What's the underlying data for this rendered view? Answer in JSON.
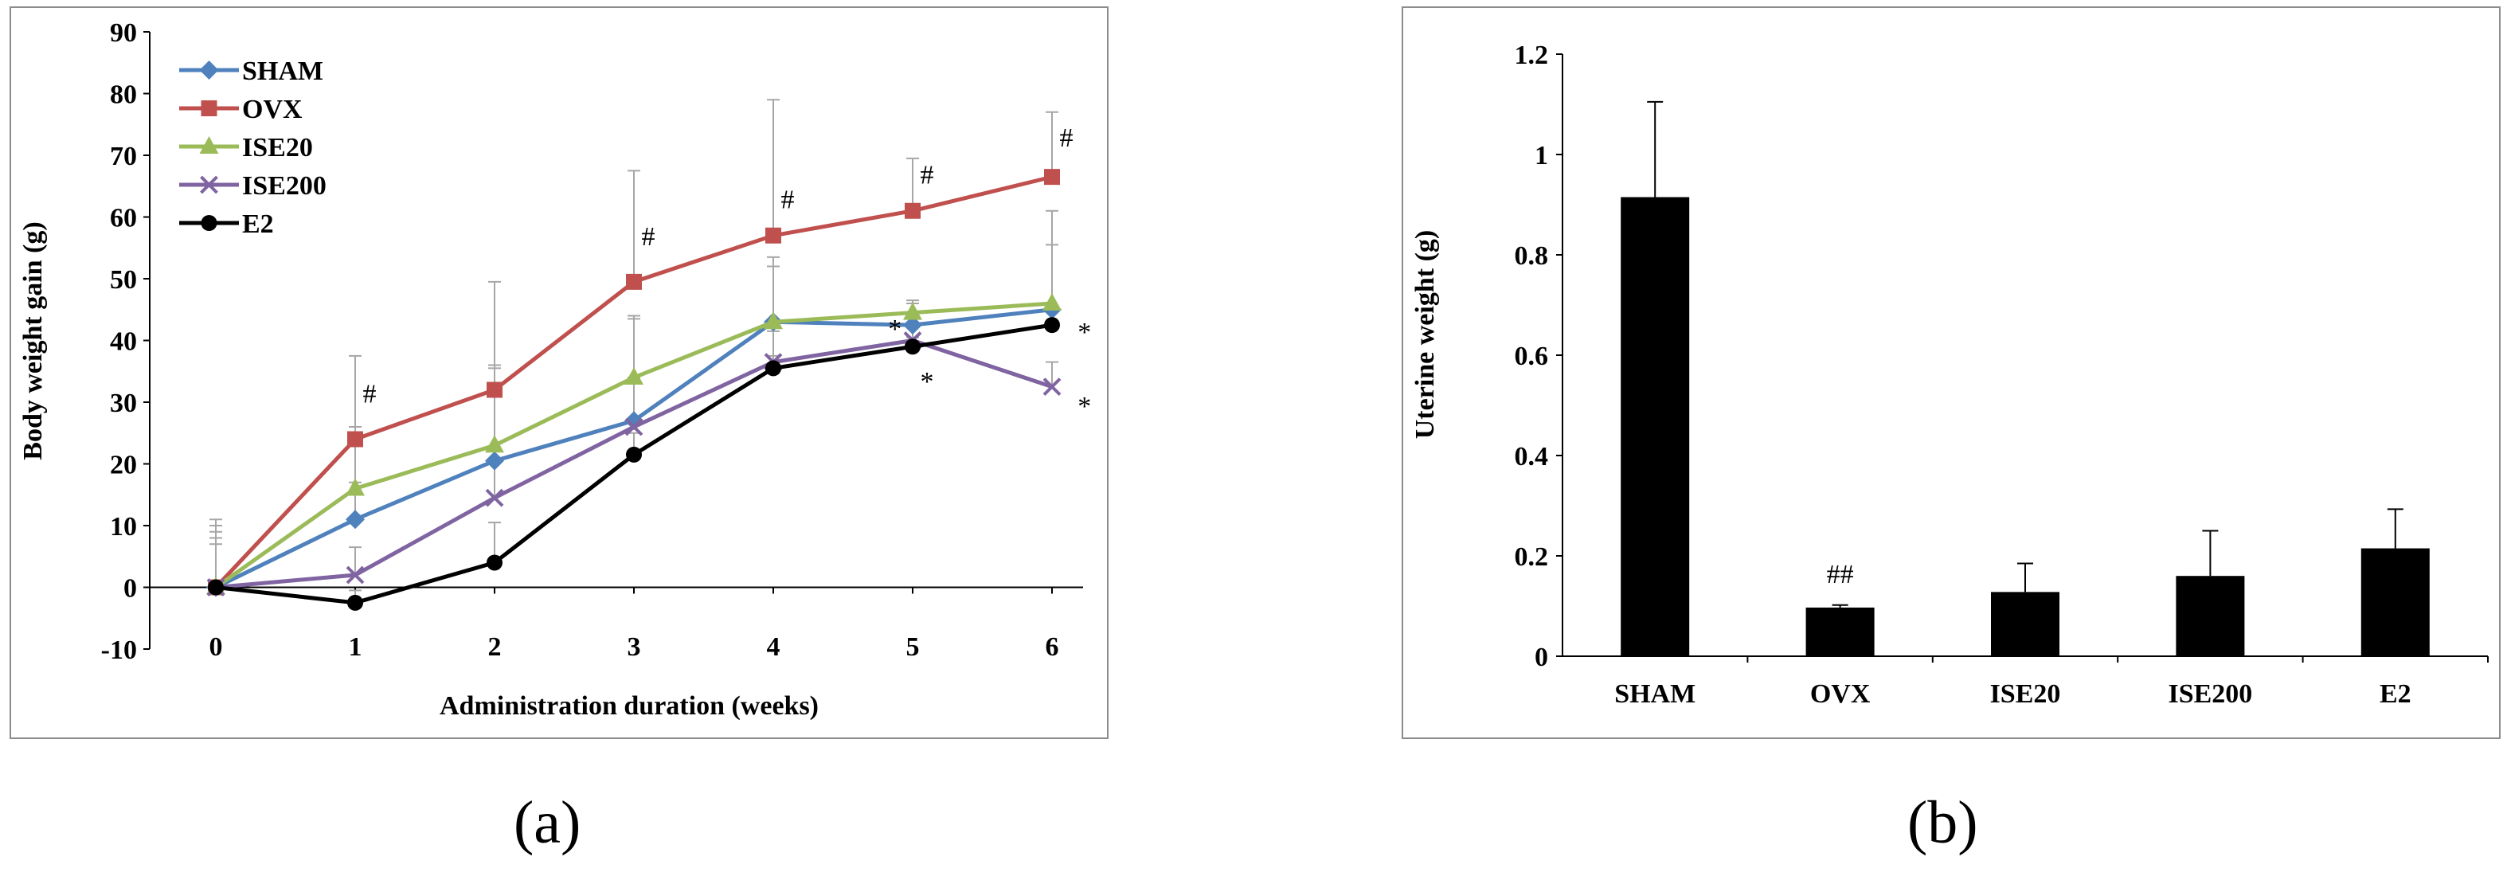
{
  "chart_data": [
    {
      "panel": "(a)",
      "type": "line",
      "title": "",
      "xlabel": "Administration duration (weeks)",
      "ylabel": "Body weight gain (g)",
      "x": [
        0,
        1,
        2,
        3,
        4,
        5,
        6
      ],
      "ylim": [
        -10,
        90
      ],
      "yticks": [
        -10,
        0,
        10,
        20,
        30,
        40,
        50,
        60,
        70,
        80,
        90
      ],
      "legend_position": "top-left",
      "series": [
        {
          "name": "SHAM",
          "color": "#4f81bd",
          "marker": "diamond",
          "values": [
            0,
            11,
            20.5,
            27,
            43,
            42.5,
            45
          ],
          "errors": [
            11,
            6,
            15,
            17,
            9,
            4,
            16
          ]
        },
        {
          "name": "OVX",
          "color": "#c0504d",
          "marker": "square",
          "values": [
            0,
            24,
            32,
            49.5,
            57,
            61,
            66.5
          ],
          "errors": [
            9,
            13.5,
            17.5,
            18,
            22,
            8.5,
            10.5
          ]
        },
        {
          "name": "ISE20",
          "color": "#9bbb59",
          "marker": "triangle",
          "values": [
            0,
            16,
            23,
            34,
            43,
            44.5,
            46
          ],
          "errors": [
            7,
            10,
            13,
            9.5,
            10.5,
            1.5,
            9.5
          ]
        },
        {
          "name": "ISE200",
          "color": "#8064a2",
          "marker": "x",
          "values": [
            0,
            2,
            14.5,
            26,
            36.5,
            40,
            32.5
          ],
          "errors": [
            8,
            4.5,
            7.5,
            8,
            5,
            3.5,
            4
          ]
        },
        {
          "name": "E2",
          "color": "#000000",
          "marker": "circle",
          "values": [
            0,
            -2.5,
            4,
            21.5,
            35.5,
            39,
            42.5
          ],
          "errors": [
            10,
            2,
            6.5,
            3.5,
            2,
            1.5,
            3
          ]
        }
      ],
      "annotations": [
        {
          "text": "#",
          "x": 1,
          "y": 31.5
        },
        {
          "text": "#",
          "x": 3,
          "y": 57
        },
        {
          "text": "#",
          "x": 4,
          "y": 63
        },
        {
          "text": "#",
          "x": 5,
          "y": 67
        },
        {
          "text": "#",
          "x": 6,
          "y": 73
        },
        {
          "text": "*",
          "x": 4.77,
          "y": 42
        },
        {
          "text": "*",
          "x": 5,
          "y": 33.5
        },
        {
          "text": "*",
          "x": 6.13,
          "y": 41.5
        },
        {
          "text": "*",
          "x": 6.13,
          "y": 29.5
        }
      ]
    },
    {
      "panel": "(b)",
      "type": "bar",
      "title": "",
      "xlabel": "",
      "ylabel": "Uterine weight (g)",
      "categories": [
        "SHAM",
        "OVX",
        "ISE20",
        "ISE200",
        "E2"
      ],
      "values": [
        0.915,
        0.097,
        0.128,
        0.16,
        0.215
      ],
      "errors": [
        0.19,
        0.005,
        0.057,
        0.09,
        0.078
      ],
      "ylim": [
        0,
        1.2
      ],
      "yticks": [
        "0",
        "0.2",
        "0.4",
        "0.6",
        "0.8",
        "1",
        "1.2"
      ],
      "bar_color": "#000000",
      "annotations": [
        {
          "text": "##",
          "category": "OVX",
          "y": 0.165
        }
      ]
    }
  ],
  "captions": {
    "a": "(a)",
    "b": "(b)"
  }
}
